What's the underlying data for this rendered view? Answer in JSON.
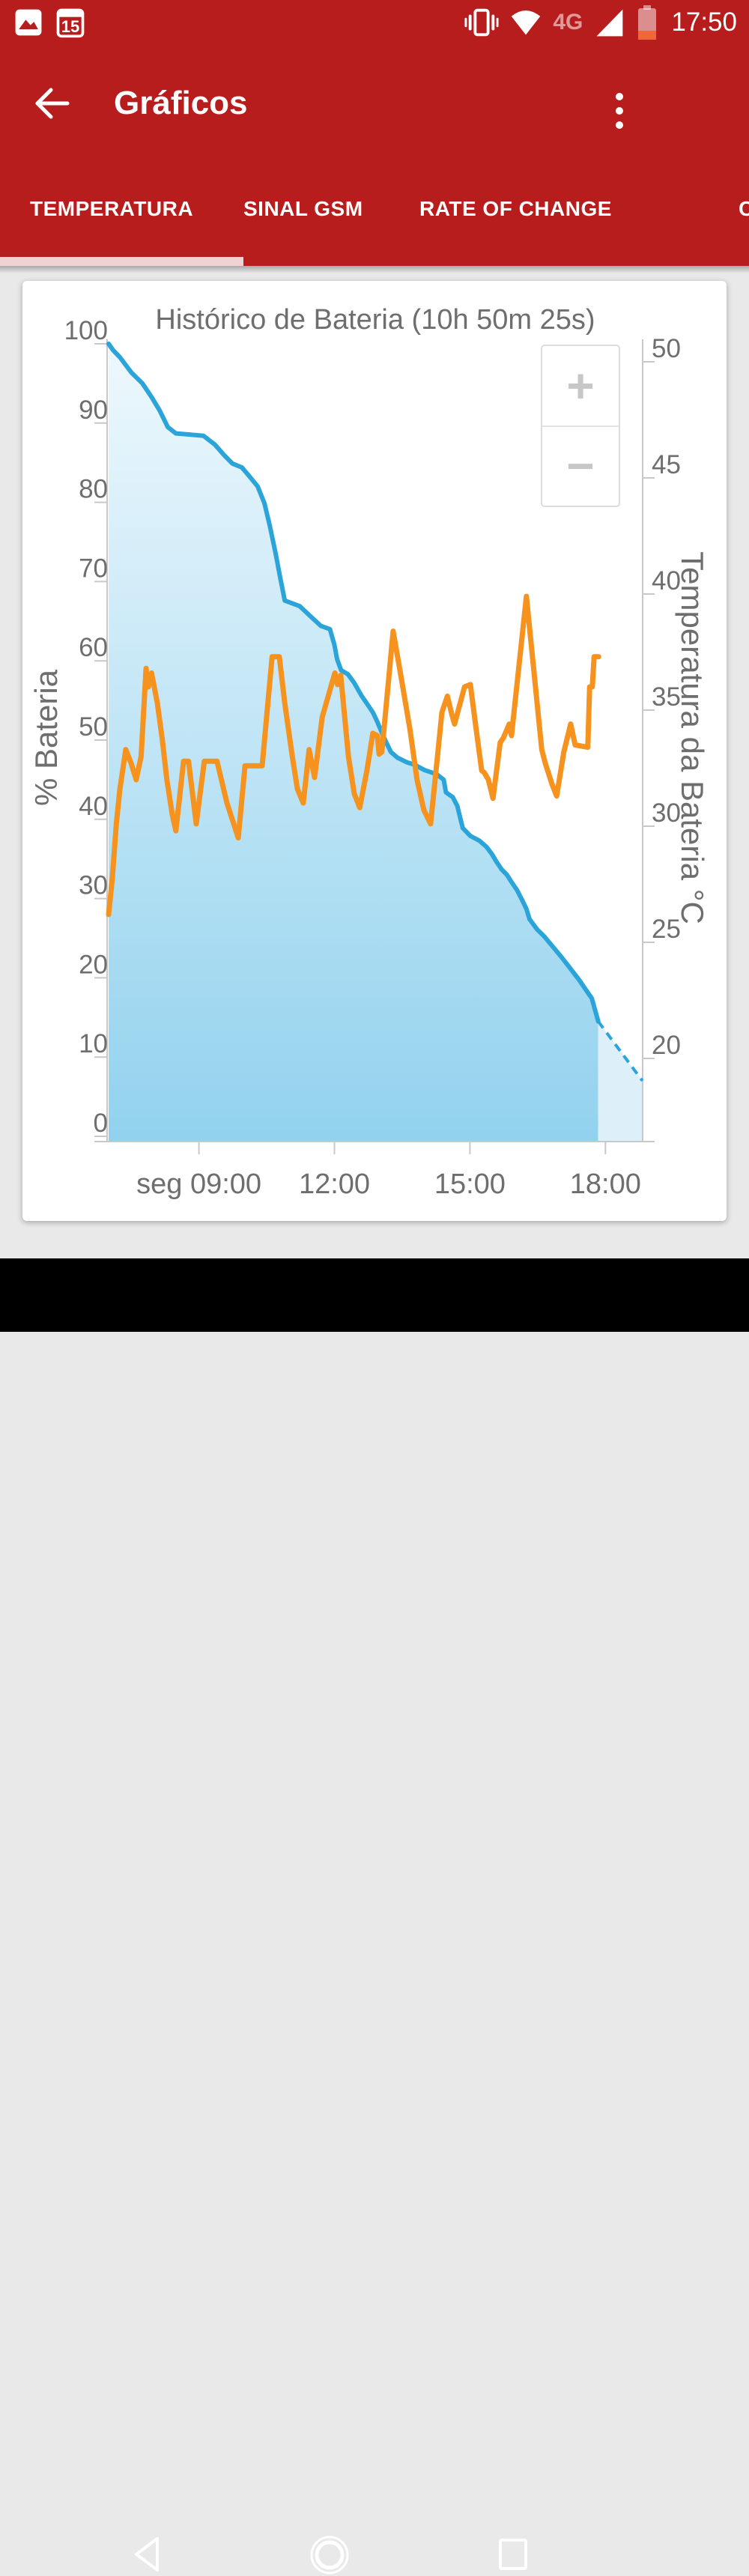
{
  "colors": {
    "chrome_red": "#b71d1c",
    "tab_indicator": "#eed2d4",
    "battery_line": "#2aa4d9",
    "temperature_line": "#f6921e",
    "area_top": "#eef8fd",
    "area_bottom": "#92d2ee",
    "projection_fill": "#ddf0fa",
    "axis_gray": "#c8c8c8",
    "text_gray": "#6e6e6e",
    "battery_icon_low": "#f0653a",
    "page_bg": "#e9e9e9",
    "nav_bg": "#000000"
  },
  "status_bar": {
    "time": "17:50",
    "network_label": "4G",
    "calendar_day": "15"
  },
  "app_bar": {
    "title": "Gráficos"
  },
  "tabs": {
    "items": [
      {
        "label": "TEMPERATURA",
        "active": true
      },
      {
        "label": "SINAL GSM",
        "active": false
      },
      {
        "label": "RATE OF CHANGE",
        "active": false
      },
      {
        "label": "C",
        "active": false,
        "truncated": true
      }
    ]
  },
  "chart": {
    "zoom_in_label": "+",
    "zoom_out_label": "−"
  },
  "chart_data": {
    "type": "line",
    "title": "Histórico de Bateria (10h 50m 25s)",
    "duration_shown": "10h 50m 25s",
    "legend_position": "none",
    "grid": false,
    "x_axis": {
      "unit": "hours_of_day",
      "range": [
        6.97,
        18.82
      ],
      "ticks": [
        {
          "t": 9,
          "label": "seg 09:00"
        },
        {
          "t": 12,
          "label": "12:00"
        },
        {
          "t": 15,
          "label": "15:00"
        },
        {
          "t": 18,
          "label": "18:00"
        }
      ]
    },
    "y_left": {
      "label": "% Bateria",
      "min": 0,
      "max": 100,
      "tick_step": 10,
      "ticks": [
        0,
        10,
        20,
        30,
        40,
        50,
        60,
        70,
        80,
        90,
        100
      ]
    },
    "y_right": {
      "label": "Temperatura da Bateria °C",
      "min": 16.3,
      "max": 50,
      "ticks": [
        20,
        25,
        30,
        35,
        40,
        45,
        50
      ]
    },
    "series": [
      {
        "name": "battery_percent",
        "axis": "left",
        "style": "area",
        "color": "#2aa4d9",
        "points": [
          [
            7.0,
            100
          ],
          [
            7.1,
            99.2
          ],
          [
            7.25,
            98.3
          ],
          [
            7.5,
            96.4
          ],
          [
            7.75,
            95.0
          ],
          [
            7.96,
            93.2
          ],
          [
            8.13,
            91.6
          ],
          [
            8.31,
            89.5
          ],
          [
            8.49,
            88.7
          ],
          [
            9.1,
            88.4
          ],
          [
            9.35,
            87.3
          ],
          [
            9.55,
            86.0
          ],
          [
            9.74,
            84.9
          ],
          [
            9.95,
            84.4
          ],
          [
            10.1,
            83.4
          ],
          [
            10.3,
            82.0
          ],
          [
            10.45,
            79.9
          ],
          [
            10.57,
            77.0
          ],
          [
            10.7,
            73.5
          ],
          [
            10.8,
            70.5
          ],
          [
            10.9,
            67.6
          ],
          [
            11.23,
            66.9
          ],
          [
            11.51,
            65.4
          ],
          [
            11.7,
            64.4
          ],
          [
            11.9,
            64.0
          ],
          [
            12.0,
            62.0
          ],
          [
            12.06,
            60.2
          ],
          [
            12.15,
            58.8
          ],
          [
            12.3,
            58.3
          ],
          [
            12.44,
            57.2
          ],
          [
            12.6,
            55.6
          ],
          [
            12.72,
            54.6
          ],
          [
            12.85,
            53.5
          ],
          [
            12.95,
            52.3
          ],
          [
            13.09,
            50.4
          ],
          [
            13.25,
            48.5
          ],
          [
            13.39,
            47.8
          ],
          [
            13.6,
            47.2
          ],
          [
            13.77,
            46.9
          ],
          [
            14.0,
            46.2
          ],
          [
            14.26,
            45.7
          ],
          [
            14.42,
            45.0
          ],
          [
            14.47,
            43.4
          ],
          [
            14.62,
            42.8
          ],
          [
            14.72,
            41.7
          ],
          [
            14.84,
            38.9
          ],
          [
            15.01,
            37.9
          ],
          [
            15.21,
            37.3
          ],
          [
            15.37,
            36.5
          ],
          [
            15.49,
            35.6
          ],
          [
            15.57,
            34.8
          ],
          [
            15.7,
            33.7
          ],
          [
            15.82,
            33.0
          ],
          [
            15.92,
            32.1
          ],
          [
            16.04,
            31.1
          ],
          [
            16.15,
            29.9
          ],
          [
            16.25,
            28.7
          ],
          [
            16.32,
            27.4
          ],
          [
            16.49,
            26.1
          ],
          [
            16.65,
            25.2
          ],
          [
            17.03,
            22.6
          ],
          [
            17.41,
            19.8
          ],
          [
            17.7,
            17.4
          ],
          [
            17.84,
            14.5
          ]
        ]
      },
      {
        "name": "battery_projection",
        "axis": "left",
        "style": "dashed",
        "color": "#2aa4d9",
        "points": [
          [
            17.84,
            14.5
          ],
          [
            18.82,
            7.0
          ]
        ]
      },
      {
        "name": "battery_temperature_c",
        "axis": "right",
        "style": "line",
        "color": "#f6921e",
        "points": [
          [
            7.0,
            26.2
          ],
          [
            7.08,
            27.7
          ],
          [
            7.17,
            30.1
          ],
          [
            7.25,
            31.6
          ],
          [
            7.38,
            33.3
          ],
          [
            7.5,
            32.7
          ],
          [
            7.61,
            32.0
          ],
          [
            7.72,
            33.0
          ],
          [
            7.83,
            36.8
          ],
          [
            7.88,
            36.0
          ],
          [
            7.95,
            36.6
          ],
          [
            8.08,
            35.3
          ],
          [
            8.19,
            33.7
          ],
          [
            8.29,
            32.0
          ],
          [
            8.41,
            30.5
          ],
          [
            8.49,
            29.8
          ],
          [
            8.66,
            32.8
          ],
          [
            8.77,
            32.8
          ],
          [
            8.94,
            30.1
          ],
          [
            9.12,
            32.8
          ],
          [
            9.4,
            32.8
          ],
          [
            9.62,
            31.0
          ],
          [
            9.87,
            29.5
          ],
          [
            10.02,
            32.6
          ],
          [
            10.4,
            32.6
          ],
          [
            10.62,
            37.3
          ],
          [
            10.78,
            37.3
          ],
          [
            10.9,
            35.3
          ],
          [
            11.06,
            33.1
          ],
          [
            11.18,
            31.6
          ],
          [
            11.31,
            31.0
          ],
          [
            11.44,
            33.3
          ],
          [
            11.56,
            32.1
          ],
          [
            11.73,
            34.7
          ],
          [
            12.01,
            36.6
          ],
          [
            12.07,
            36.1
          ],
          [
            12.14,
            36.5
          ],
          [
            12.31,
            33.0
          ],
          [
            12.44,
            31.4
          ],
          [
            12.56,
            30.8
          ],
          [
            12.72,
            32.4
          ],
          [
            12.85,
            34.0
          ],
          [
            12.95,
            33.9
          ],
          [
            12.99,
            33.1
          ],
          [
            13.05,
            33.2
          ],
          [
            13.3,
            38.4
          ],
          [
            13.47,
            36.5
          ],
          [
            13.67,
            34.2
          ],
          [
            13.83,
            32.0
          ],
          [
            13.98,
            30.7
          ],
          [
            14.13,
            30.1
          ],
          [
            14.26,
            32.6
          ],
          [
            14.38,
            34.9
          ],
          [
            14.5,
            35.6
          ],
          [
            14.6,
            34.8
          ],
          [
            14.66,
            34.4
          ],
          [
            14.88,
            36.0
          ],
          [
            15.01,
            36.1
          ],
          [
            15.13,
            34.3
          ],
          [
            15.26,
            32.4
          ],
          [
            15.32,
            32.3
          ],
          [
            15.41,
            32.0
          ],
          [
            15.51,
            31.2
          ],
          [
            15.67,
            33.6
          ],
          [
            15.74,
            33.8
          ],
          [
            15.87,
            34.4
          ],
          [
            15.92,
            33.9
          ],
          [
            16.25,
            39.9
          ],
          [
            16.59,
            33.3
          ],
          [
            16.67,
            32.7
          ],
          [
            16.82,
            31.8
          ],
          [
            16.92,
            31.3
          ],
          [
            17.08,
            33.2
          ],
          [
            17.23,
            34.4
          ],
          [
            17.33,
            33.5
          ],
          [
            17.61,
            33.4
          ],
          [
            17.65,
            36.0
          ],
          [
            17.71,
            36.0
          ],
          [
            17.75,
            37.3
          ],
          [
            17.85,
            37.3
          ]
        ]
      }
    ]
  }
}
